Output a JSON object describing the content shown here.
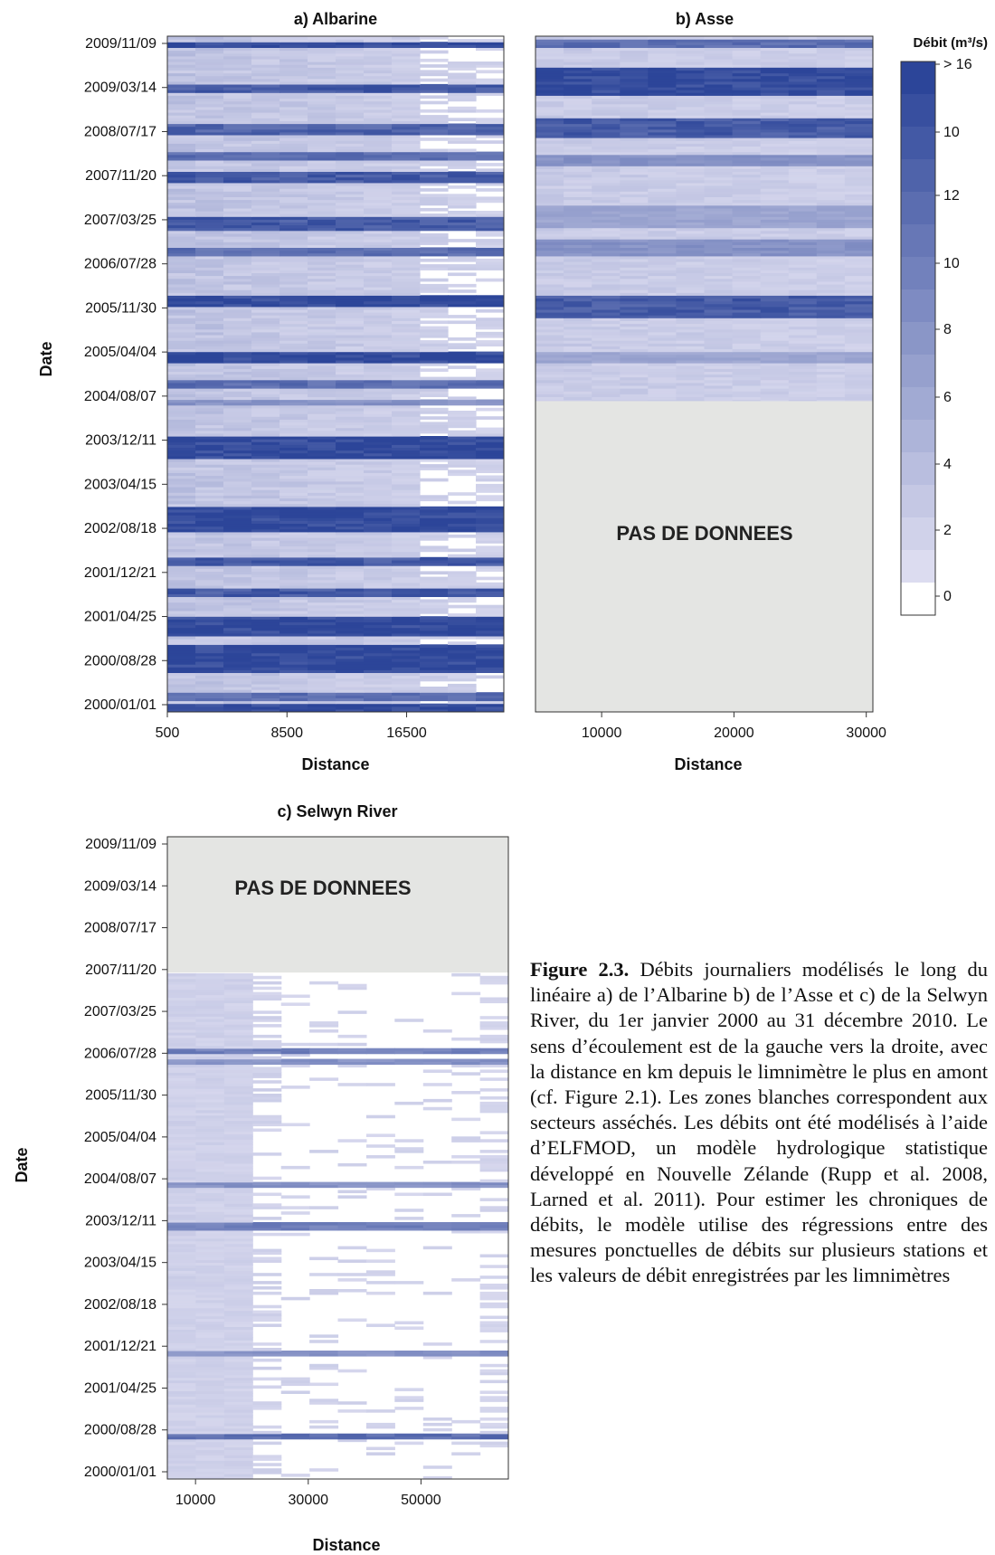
{
  "chart_data": [
    {
      "type": "heatmap",
      "title": "a) Albarine",
      "xlabel": "Distance",
      "ylabel": "Date",
      "xticks": [
        "500",
        "8500",
        "16500"
      ],
      "xlim": [
        500,
        23000
      ],
      "yticks": [
        "2009/11/09",
        "2009/03/14",
        "2008/07/17",
        "2007/11/20",
        "2007/03/25",
        "2006/07/28",
        "2005/11/30",
        "2005/04/04",
        "2004/08/07",
        "2003/12/11",
        "2003/04/15",
        "2002/08/18",
        "2001/12/21",
        "2001/04/25",
        "2000/08/28",
        "2000/01/01"
      ],
      "ylim": [
        "2000/01/01",
        "2010/01/01"
      ],
      "wet_periods": [
        {
          "from": "2009/11/09",
          "to": "2009/11/20",
          "max_flow": 16
        },
        {
          "from": "2009/03/01",
          "to": "2009/04/10",
          "max_flow": 14
        },
        {
          "from": "2008/07/25",
          "to": "2008/09/10",
          "max_flow": 13
        },
        {
          "from": "2008/03/01",
          "to": "2008/04/15",
          "max_flow": 12
        },
        {
          "from": "2007/11/01",
          "to": "2007/12/20",
          "max_flow": 14
        },
        {
          "from": "2007/02/20",
          "to": "2007/04/30",
          "max_flow": 14
        },
        {
          "from": "2006/10/10",
          "to": "2006/11/10",
          "max_flow": 12
        },
        {
          "from": "2006/01/15",
          "to": "2006/02/25",
          "max_flow": 16
        },
        {
          "from": "2005/03/05",
          "to": "2005/04/20",
          "max_flow": 16
        },
        {
          "from": "2004/10/20",
          "to": "2004/11/30",
          "max_flow": 12
        },
        {
          "from": "2004/07/20",
          "to": "2004/08/15",
          "max_flow": 8
        },
        {
          "from": "2003/10/15",
          "to": "2004/01/20",
          "max_flow": 16
        },
        {
          "from": "2002/09/15",
          "to": "2003/01/10",
          "max_flow": 16
        },
        {
          "from": "2002/03/01",
          "to": "2002/04/15",
          "max_flow": 14
        },
        {
          "from": "2001/09/25",
          "to": "2001/10/30",
          "max_flow": 14
        },
        {
          "from": "2001/02/20",
          "to": "2001/05/20",
          "max_flow": 16
        },
        {
          "from": "2000/08/01",
          "to": "2000/12/20",
          "max_flow": 16
        },
        {
          "from": "2000/03/01",
          "to": "2000/04/15",
          "max_flow": 12
        },
        {
          "from": "2000/01/10",
          "to": "2000/02/10",
          "max_flow": 16
        }
      ]
    },
    {
      "type": "heatmap",
      "title": "b) Asse",
      "xlabel": "Distance",
      "xticks": [
        "10000",
        "20000",
        "30000"
      ],
      "xlim": [
        5000,
        30500
      ],
      "ylim": [
        "2000/01/01",
        "2010/01/01"
      ],
      "data_from": "2004/08/07",
      "no_data_label": "PAS DE DONNEES",
      "wet_periods": [
        {
          "from": "2009/11/01",
          "to": "2009/12/15",
          "max_flow": 12
        },
        {
          "from": "2009/02/20",
          "to": "2009/07/15",
          "max_flow": 16
        },
        {
          "from": "2008/07/15",
          "to": "2008/10/15",
          "max_flow": 14
        },
        {
          "from": "2008/02/01",
          "to": "2008/03/20",
          "max_flow": 8
        },
        {
          "from": "2007/03/01",
          "to": "2007/06/30",
          "max_flow": 6
        },
        {
          "from": "2006/10/01",
          "to": "2006/12/20",
          "max_flow": 8
        },
        {
          "from": "2005/11/15",
          "to": "2006/02/28",
          "max_flow": 14
        },
        {
          "from": "2005/03/10",
          "to": "2005/04/25",
          "max_flow": 6
        }
      ]
    },
    {
      "type": "heatmap",
      "title": "c) Selwyn River",
      "xlabel": "Distance",
      "ylabel": "Date",
      "xticks": [
        "10000",
        "30000",
        "50000"
      ],
      "xlim": [
        5000,
        65500
      ],
      "yticks": [
        "2009/11/09",
        "2009/03/14",
        "2008/07/17",
        "2007/11/20",
        "2007/03/25",
        "2006/07/28",
        "2005/11/30",
        "2005/04/04",
        "2004/08/07",
        "2003/12/11",
        "2003/04/15",
        "2002/08/18",
        "2001/12/21",
        "2001/04/25",
        "2000/08/28",
        "2000/01/01"
      ],
      "ylim": [
        "2000/01/01",
        "2010/01/01"
      ],
      "data_until": "2007/11/20",
      "no_data_label": "PAS DE DONNEES",
      "wet_periods": [
        {
          "from": "2006/08/20",
          "to": "2006/09/10",
          "max_flow": 10
        },
        {
          "from": "2006/06/25",
          "to": "2006/07/15",
          "max_flow": 8
        },
        {
          "from": "2004/07/25",
          "to": "2004/08/10",
          "max_flow": 8
        },
        {
          "from": "2003/11/20",
          "to": "2003/12/31",
          "max_flow": 10
        },
        {
          "from": "2001/12/15",
          "to": "2001/12/31",
          "max_flow": 8
        },
        {
          "from": "2000/08/20",
          "to": "2000/09/15",
          "max_flow": 12
        }
      ]
    }
  ],
  "colorbar": {
    "title": "Débit (m³/s)",
    "labels": [
      "> 16",
      "10",
      "12",
      "10",
      "8",
      "6",
      "4",
      "2",
      "0"
    ],
    "color_low": "#dcdcf0",
    "color_high": "#2c4599",
    "color_dry": "#ffffff"
  },
  "no_data_fill": "#e4e5e3",
  "caption": {
    "label": "Figure 2.3.",
    "text": "Débits journaliers modélisés le long du linéaire a) de l’Albarine b) de l’Asse et c) de la Selwyn River, du 1er janvier 2000 au 31 décembre 2010. Le sens d’écoulement est de la gauche vers la droite, avec la distance en km depuis le limnimètre le plus en amont (cf. Figure 2.1). Les zones blanches correspondent aux secteurs asséchés. Les débits ont été modélisés à l’aide d’ELFMOD, un modèle hydrologique statistique développé en Nouvelle Zélande (Rupp et al. 2008, Larned et al. 2011). Pour estimer les chroniques de débits, le modèle utilise des régressions entre des mesures ponctuelles de débits sur plusieurs stations et les valeurs de débit enregistrées par les limnimètres"
  }
}
